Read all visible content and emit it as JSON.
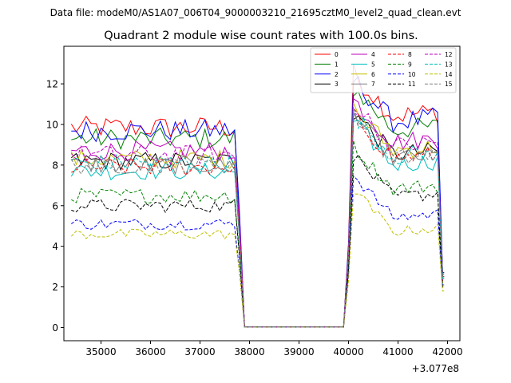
{
  "chart_data": {
    "type": "line",
    "suptitle": "Data file: modeM0/AS1A07_006T04_9000003210_21695cztM0_level2_quad_clean.evt",
    "title": "Quadrant 2 module wise count rates with 100.0s bins.",
    "xlabel": "",
    "ylabel": "",
    "x_offset_text": "+3.077e8",
    "x_offset": 307700000,
    "xlim": [
      34250,
      42250
    ],
    "ylim": [
      -0.65,
      13.85
    ],
    "x_ticks": [
      35000,
      36000,
      37000,
      38000,
      39000,
      40000,
      41000,
      42000
    ],
    "x_tick_labels": [
      "35000",
      "36000",
      "37000",
      "38000",
      "39000",
      "40000",
      "41000",
      "42000"
    ],
    "y_ticks": [
      0,
      2,
      4,
      6,
      8,
      10,
      12
    ],
    "y_tick_labels": [
      "0",
      "2",
      "4",
      "6",
      "8",
      "10",
      "12"
    ],
    "grid": false,
    "legend_placement": "top-right",
    "legend_columns": 4,
    "time_profile": {
      "x_start": 34400,
      "bin_width": 100,
      "n_bins": 76,
      "drop_start": 37720,
      "drop_end": 37900,
      "gap_end": 39950,
      "rise_end": 40100,
      "tail_start": 41850,
      "tail_end": 41930,
      "gap_value": 0.02
    },
    "series": [
      {
        "name": "0",
        "color": "#ff0000",
        "style": "solid",
        "level": 9.85,
        "after": 10.9,
        "final": 2.7
      },
      {
        "name": "1",
        "color": "#008000",
        "style": "solid",
        "level": 9.3,
        "after": 10.2,
        "final": 2.7
      },
      {
        "name": "2",
        "color": "#0000ff",
        "style": "solid",
        "level": 9.7,
        "after": 10.6,
        "final": 2.7
      },
      {
        "name": "3",
        "color": "#000000",
        "style": "solid",
        "level": 8.2,
        "after": 9.0,
        "final": 2.5
      },
      {
        "name": "4",
        "color": "#bf00bf",
        "style": "solid",
        "level": 8.7,
        "after": 9.6,
        "final": 2.6
      },
      {
        "name": "5",
        "color": "#00bfbf",
        "style": "solid",
        "level": 7.7,
        "after": 8.5,
        "final": 2.4
      },
      {
        "name": "6",
        "color": "#bfbf00",
        "style": "solid",
        "level": 8.3,
        "after": 9.2,
        "final": 2.5
      },
      {
        "name": "7",
        "color": "#808080",
        "style": "solid",
        "level": 8.0,
        "after": 8.8,
        "final": 2.5
      },
      {
        "name": "8",
        "color": "#ff0000",
        "style": "dashed",
        "level": 7.9,
        "after": 8.8,
        "final": 2.3
      },
      {
        "name": "9",
        "color": "#008000",
        "style": "dashed",
        "level": 6.5,
        "after": 7.3,
        "final": 2.1
      },
      {
        "name": "10",
        "color": "#0000ff",
        "style": "dashed",
        "level": 5.1,
        "after": 5.9,
        "final": 2.0
      },
      {
        "name": "11",
        "color": "#000000",
        "style": "dashed",
        "level": 6.0,
        "after": 6.9,
        "final": 2.0
      },
      {
        "name": "12",
        "color": "#bf00bf",
        "style": "dashed",
        "level": 8.5,
        "after": 9.4,
        "final": 2.5
      },
      {
        "name": "13",
        "color": "#00bfbf",
        "style": "dashed",
        "level": 8.1,
        "after": 8.9,
        "final": 2.4
      },
      {
        "name": "14",
        "color": "#bfbf00",
        "style": "dashed",
        "level": 4.6,
        "after": 5.2,
        "final": 1.8
      },
      {
        "name": "15",
        "color": "#808080",
        "style": "dashed",
        "level": 8.0,
        "after": 8.8,
        "final": 2.4
      }
    ]
  }
}
